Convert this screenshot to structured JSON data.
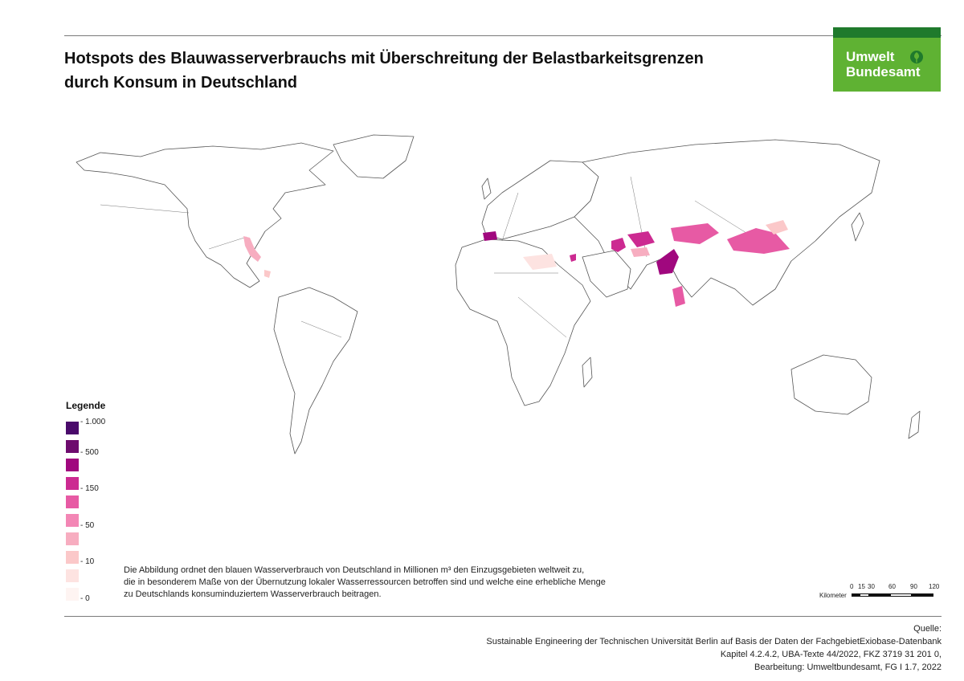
{
  "title": {
    "line1": "Hotspots des Blauwasserverbrauchs mit Überschreitung der Belastbarkeitsgrenzen",
    "line2": "durch Konsum in Deutschland"
  },
  "logo": {
    "line1": "Umwelt",
    "line2": "Bundesamt",
    "icon": "leaf-icon",
    "bar_color": "#1f7a2c",
    "bg_color": "#5fb233"
  },
  "legend": {
    "title": "Legende",
    "swatches": [
      "#4a0a6b",
      "#6e0b6e",
      "#a0087e",
      "#cc2a91",
      "#e75aa4",
      "#f386b5",
      "#f7adc0",
      "#fbc8c9",
      "#fde3e1",
      "#fef4f2"
    ],
    "labels": [
      "- 1.000",
      "- 500",
      "- 150",
      "- 50",
      "- 10",
      "- 0"
    ]
  },
  "description": {
    "line1": "Die Abbildung ordnet den blauen Wasserverbrauch von Deutschland in Millionen m³ den Einzugsgebieten weltweit zu,",
    "line2": "die in besonderem Maße von der Übernutzung lokaler Wasserressourcen betroffen sind und welche eine erhebliche Menge",
    "line3": "zu Deutschlands konsuminduziertem Wasserverbrauch beitragen."
  },
  "scale": {
    "ticks": [
      "0",
      "15",
      "30",
      "60",
      "90",
      "120"
    ],
    "unit": "Kilometer"
  },
  "source": {
    "label": "Quelle:",
    "line1": "Sustainable Engineering der Technischen Universität Berlin auf Basis der Daten der FachgebietExiobase-Datenbank",
    "line2": "Kapitel 4.2.4.2, UBA-Texte 44/2022, FKZ 3719 31 201 0,",
    "line3": "Bearbeitung: Umweltbundesamt, FG I 1.7, 2022"
  }
}
